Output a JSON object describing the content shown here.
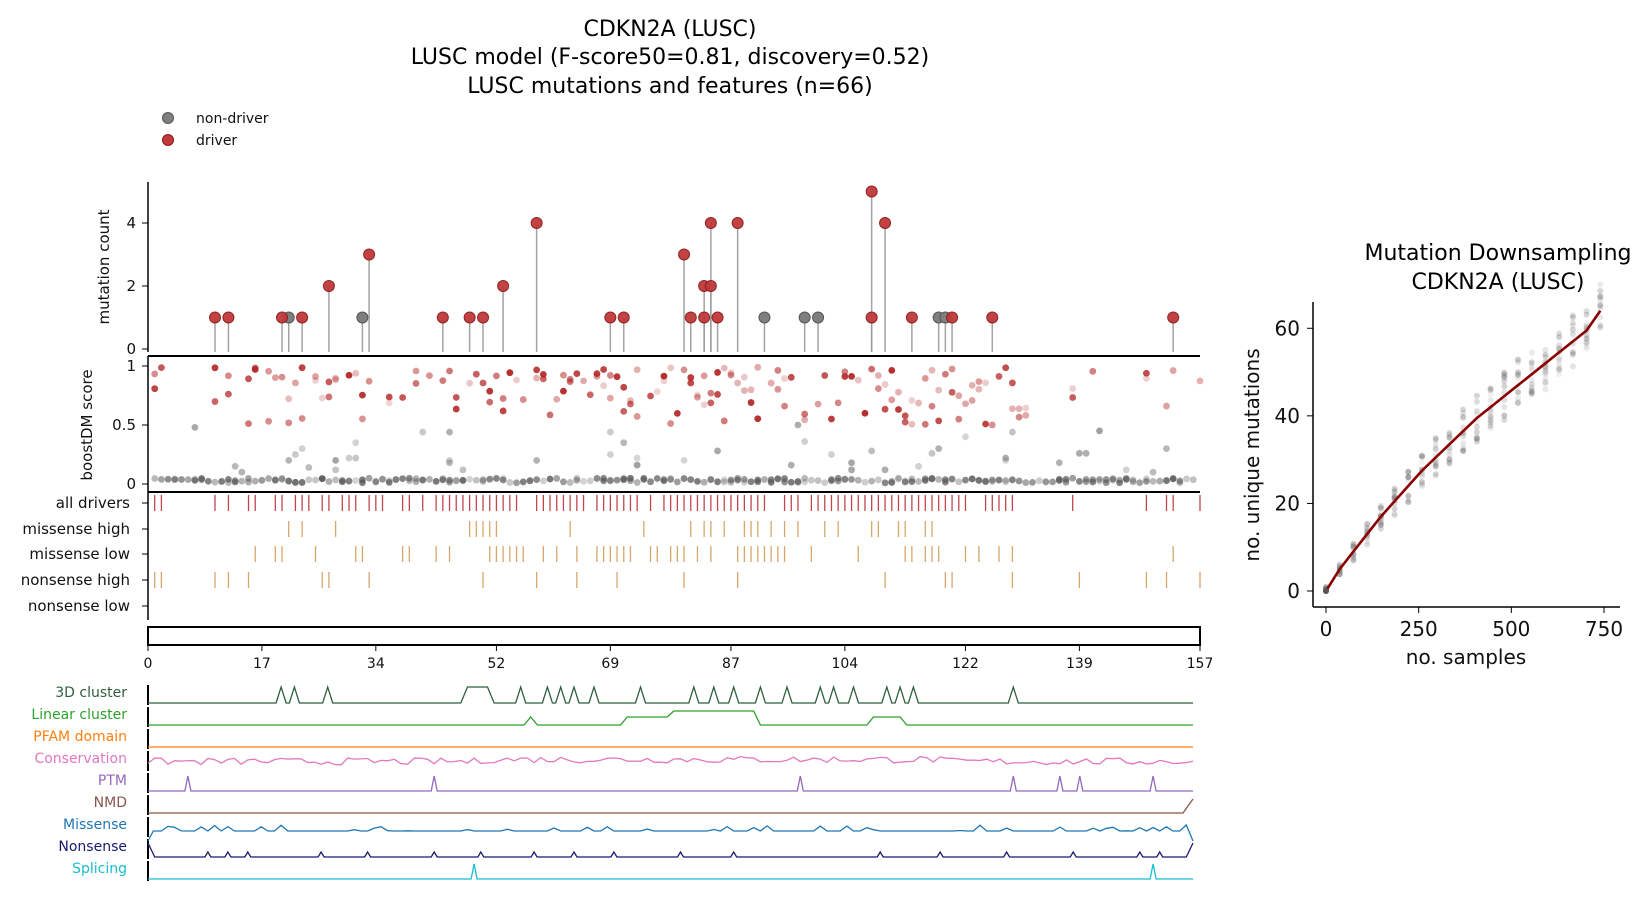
{
  "colors": {
    "driver": "#b22222",
    "non_driver": "#7f7f7f",
    "all_drivers": "#c0464f",
    "missense": "#d8a66a",
    "nonsense": "#d8a66a",
    "stem": "#9a9a9a",
    "curve": "#8b0000",
    "cluster3d": "#2f5f3f",
    "linear": "#2ca02c",
    "pfam": "#ff7f0e",
    "conservation": "#e377c2",
    "ptm": "#9467bd",
    "nmd": "#8c564b",
    "missense_line": "#1f77b4",
    "nonsense_line": "#191970",
    "splicing": "#17becf"
  },
  "titles": {
    "main": [
      "CDKN2A (LUSC)",
      "LUSC model (F-score50=0.81, discovery=0.52)",
      "LUSC mutations and features (n=66)"
    ],
    "right": [
      "Mutation Downsampling",
      "CDKN2A (LUSC)"
    ]
  },
  "legend": [
    {
      "label": "non-driver",
      "color": "#7f7f7f"
    },
    {
      "label": "driver",
      "color": "#b22222"
    }
  ],
  "chart_data": [
    {
      "type": "scatter",
      "name": "needle",
      "ylabel": "mutation count",
      "x_range": [
        0,
        157
      ],
      "ylim": [
        0,
        5
      ],
      "y_ticks": [
        0,
        2,
        4
      ],
      "x_ticks": [
        0,
        17,
        34,
        52,
        69,
        87,
        104,
        122,
        139,
        157
      ],
      "driver": [
        [
          10,
          1
        ],
        [
          12,
          1
        ],
        [
          20,
          1
        ],
        [
          23,
          1
        ],
        [
          27,
          2
        ],
        [
          33,
          3
        ],
        [
          44,
          1
        ],
        [
          48,
          1
        ],
        [
          50,
          1
        ],
        [
          53,
          2
        ],
        [
          58,
          4
        ],
        [
          69,
          1
        ],
        [
          71,
          1
        ],
        [
          80,
          3
        ],
        [
          81,
          1
        ],
        [
          83,
          2
        ],
        [
          83,
          1
        ],
        [
          84,
          2
        ],
        [
          84,
          4
        ],
        [
          85,
          1
        ],
        [
          88,
          4
        ],
        [
          108,
          5
        ],
        [
          108,
          1
        ],
        [
          110,
          4
        ],
        [
          114,
          1
        ],
        [
          120,
          1
        ],
        [
          126,
          1
        ],
        [
          153,
          1
        ]
      ],
      "non_driver": [
        [
          21,
          1
        ],
        [
          32,
          1
        ],
        [
          92,
          1
        ],
        [
          98,
          1
        ],
        [
          100,
          1
        ],
        [
          118,
          1
        ],
        [
          119,
          1
        ]
      ]
    },
    {
      "type": "scatter",
      "name": "boostdm",
      "ylabel": "boostDM score",
      "ylim": [
        0,
        1
      ],
      "y_ticks": [
        0,
        0.5,
        1
      ],
      "high_positions": [
        1,
        2,
        10,
        12,
        15,
        16,
        18,
        19,
        20,
        21,
        22,
        23,
        25,
        26,
        27,
        28,
        30,
        31,
        32,
        33,
        36,
        38,
        40,
        42,
        44,
        45,
        46,
        48,
        49,
        50,
        51,
        52,
        53,
        54,
        55,
        56,
        58,
        59,
        60,
        61,
        62,
        63,
        64,
        65,
        66,
        67,
        68,
        69,
        70,
        71,
        72,
        73,
        75,
        76,
        77,
        78,
        79,
        80,
        81,
        82,
        83,
        84,
        85,
        86,
        87,
        88,
        89,
        90,
        91,
        93,
        94,
        95,
        96,
        98,
        100,
        101,
        102,
        103,
        104,
        105,
        106,
        107,
        108,
        109,
        110,
        111,
        112,
        113,
        114,
        115,
        116,
        117,
        118,
        119,
        120,
        121,
        122,
        123,
        124,
        125,
        126,
        127,
        128,
        129,
        130,
        131,
        138,
        141,
        149,
        152,
        153,
        157
      ],
      "low_scores": [
        0.2,
        0.26,
        0.5,
        0.48,
        0.26,
        0.12,
        0.35,
        0.1,
        0.18,
        0.22,
        0.4,
        0.2,
        0.15,
        0.12,
        0.3,
        0.36,
        0.45,
        0.16,
        0.2,
        0.12,
        0.28,
        0.16,
        0.35,
        0.25,
        0.22,
        0.44,
        0.3,
        0.14,
        0.2,
        0.28,
        0.44,
        0.1,
        0.25,
        0.2,
        0.26,
        0.18,
        0.12,
        0.44,
        0.22,
        0.3,
        0.15,
        0.25,
        0.2,
        0.44,
        0.12,
        0.18,
        0.22
      ]
    },
    {
      "type": "table",
      "name": "tracks",
      "rows": [
        "all drivers",
        "missense high",
        "missense low",
        "nonsense high",
        "nonsense low"
      ],
      "all_drivers": [
        1,
        2,
        10,
        12,
        15,
        16,
        19,
        20,
        22,
        23,
        24,
        26,
        27,
        29,
        30,
        31,
        33,
        34,
        35,
        38,
        39,
        41,
        43,
        44,
        45,
        46,
        47,
        48,
        49,
        50,
        51,
        52,
        53,
        54,
        55,
        58,
        59,
        60,
        61,
        62,
        63,
        64,
        65,
        67,
        68,
        69,
        70,
        71,
        72,
        73,
        75,
        77,
        78,
        79,
        80,
        81,
        82,
        83,
        84,
        85,
        86,
        87,
        88,
        89,
        90,
        91,
        92,
        95,
        96,
        97,
        99,
        100,
        101,
        102,
        103,
        104,
        105,
        106,
        107,
        108,
        109,
        110,
        111,
        112,
        113,
        114,
        115,
        116,
        117,
        118,
        119,
        120,
        121,
        122,
        125,
        126,
        127,
        128,
        129,
        138,
        149,
        152,
        153,
        157
      ],
      "missense_high": [
        21,
        23,
        28,
        48,
        49,
        50,
        51,
        52,
        63,
        74,
        81,
        83,
        84,
        86,
        89,
        90,
        91,
        93,
        95,
        97,
        101,
        103,
        108,
        109,
        112,
        113,
        116,
        117
      ],
      "missense_low": [
        16,
        19,
        20,
        25,
        31,
        32,
        38,
        39,
        43,
        45,
        51,
        52,
        53,
        54,
        55,
        56,
        59,
        61,
        64,
        67,
        68,
        69,
        70,
        71,
        72,
        75,
        76,
        78,
        79,
        80,
        82,
        84,
        88,
        89,
        90,
        91,
        92,
        93,
        94,
        95,
        99,
        106,
        113,
        114,
        116,
        117,
        118,
        122,
        124,
        127,
        129,
        153
      ],
      "nonsense_high": [
        1,
        2,
        10,
        12,
        15,
        26,
        27,
        33,
        50,
        58,
        64,
        70,
        80,
        88,
        110,
        119,
        120,
        129,
        139,
        149,
        152,
        157
      ],
      "nonsense_low": []
    }
  ],
  "features": [
    {
      "label": "3D cluster",
      "color": "#2f5f3f"
    },
    {
      "label": "Linear cluster",
      "color": "#2ca02c"
    },
    {
      "label": "PFAM domain",
      "color": "#ff7f0e"
    },
    {
      "label": "Conservation",
      "color": "#e377c2"
    },
    {
      "label": "PTM",
      "color": "#9467bd"
    },
    {
      "label": "NMD",
      "color": "#8c564b"
    },
    {
      "label": "Missense",
      "color": "#1f77b4"
    },
    {
      "label": "Nonsense",
      "color": "#191970"
    },
    {
      "label": "Splicing",
      "color": "#17becf"
    }
  ],
  "downsampling": {
    "type": "line",
    "xlabel": "no. samples",
    "ylabel": "no. unique mutations",
    "xlim": [
      0,
      750
    ],
    "ylim": [
      0,
      66
    ],
    "x_ticks": [
      0,
      250,
      500,
      750
    ],
    "y_ticks": [
      0,
      20,
      40,
      60
    ],
    "x": [
      0,
      37,
      74,
      111,
      148,
      185,
      222,
      259,
      296,
      333,
      370,
      407,
      444,
      481,
      518,
      555,
      592,
      629,
      666,
      703,
      740
    ],
    "y": [
      0,
      5,
      9,
      13,
      17,
      20.5,
      24,
      27.5,
      30.5,
      33.5,
      36.5,
      39.5,
      42,
      44.5,
      47,
      49.5,
      52,
      54.5,
      57,
      59.5,
      64
    ]
  }
}
